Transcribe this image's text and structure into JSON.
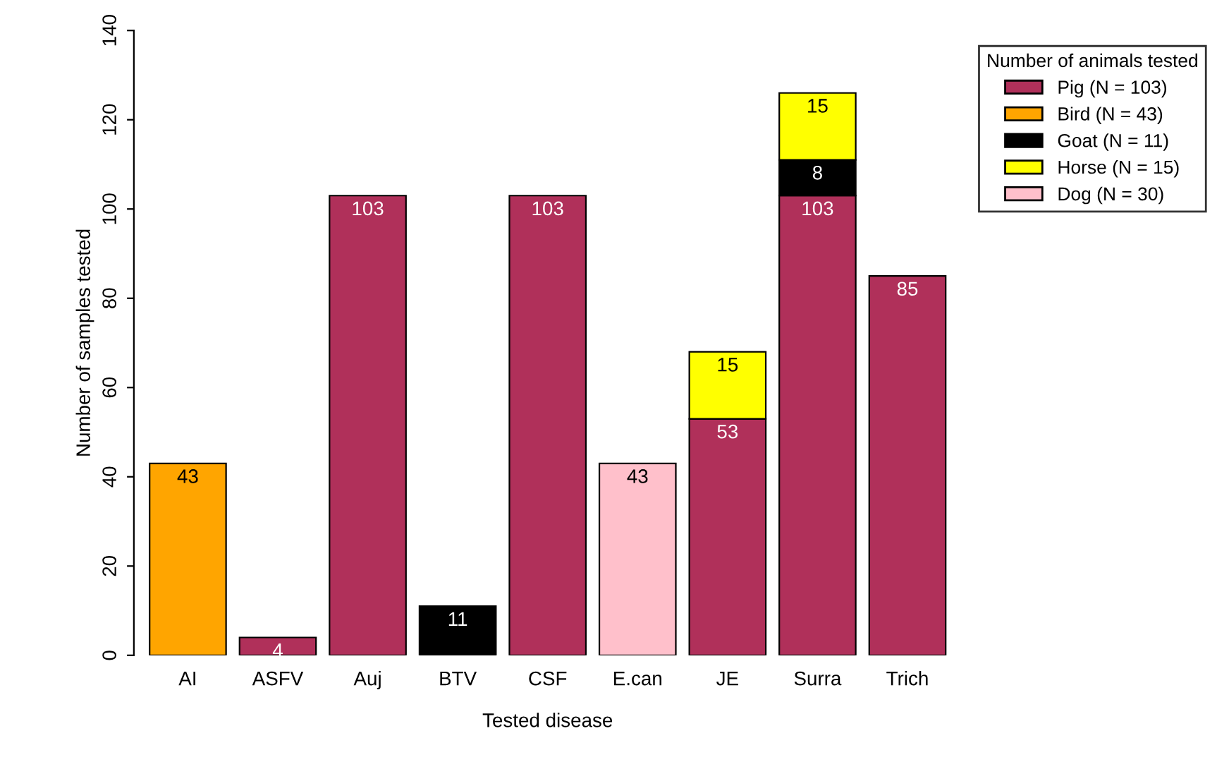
{
  "chart_data": {
    "type": "bar",
    "stacked": true,
    "xlabel": "Tested disease",
    "ylabel": "Number of samples tested",
    "legend_title": "Number of animals tested",
    "categories": [
      "AI",
      "ASFV",
      "Auj",
      "BTV",
      "CSF",
      "E.can",
      "JE",
      "Surra",
      "Trich"
    ],
    "series": [
      {
        "name": "Pig (N = 103)",
        "color": "#b0305a",
        "values": [
          null,
          4,
          103,
          null,
          103,
          null,
          53,
          103,
          85
        ]
      },
      {
        "name": "Bird (N = 43)",
        "color": "#ffa500",
        "values": [
          43,
          null,
          null,
          null,
          null,
          null,
          null,
          null,
          null
        ]
      },
      {
        "name": "Goat (N = 11)",
        "color": "#000000",
        "values": [
          null,
          null,
          null,
          11,
          null,
          null,
          null,
          8,
          null
        ]
      },
      {
        "name": "Horse (N = 15)",
        "color": "#ffff00",
        "values": [
          null,
          null,
          null,
          null,
          null,
          null,
          15,
          15,
          null
        ]
      },
      {
        "name": "Dog (N = 30)",
        "color": "#ffc0cb",
        "values": [
          null,
          null,
          null,
          null,
          null,
          43,
          null,
          null,
          null
        ]
      }
    ],
    "ylim": [
      0,
      140
    ],
    "yticks": [
      0,
      20,
      40,
      60,
      80,
      100,
      120,
      140
    ],
    "grid": false,
    "legend": "top right",
    "data_labels": true
  }
}
